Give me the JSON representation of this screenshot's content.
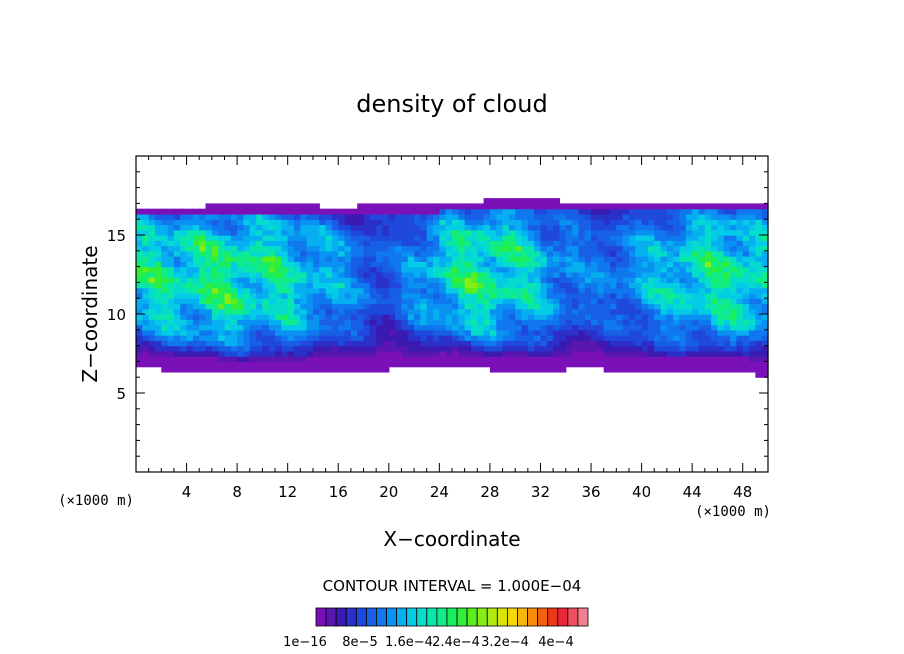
{
  "chart_data": {
    "type": "heatmap",
    "title": "density of cloud",
    "xlabel": "X−coordinate",
    "ylabel": "Z−coordinate",
    "x_unit_label": "(×1000 m)",
    "y_unit_label": "(×1000 m)",
    "xlim": [
      0,
      50
    ],
    "ylim": [
      0,
      20
    ],
    "x_ticks": [
      "4",
      "8",
      "12",
      "16",
      "20",
      "24",
      "28",
      "32",
      "36",
      "40",
      "44",
      "48"
    ],
    "y_ticks": [
      "5",
      "10",
      "15"
    ],
    "x_tick_values": [
      4,
      8,
      12,
      16,
      20,
      24,
      28,
      32,
      36,
      40,
      44,
      48
    ],
    "y_tick_values": [
      5,
      10,
      15
    ],
    "cloud_base_z": 6.6,
    "cloud_top_z": 17.0,
    "contour_interval_label": "CONTOUR INTERVAL = 1.000E−04",
    "colorbar": {
      "labels": [
        "1e−16",
        "8e−5",
        "1.6e−4",
        "2.4e−4",
        "3.2e−4",
        "4e−4"
      ],
      "colors": [
        "#7a10b8",
        "#5a16b0",
        "#3a1ab0",
        "#2a30c8",
        "#1f48dc",
        "#1760e6",
        "#1078ee",
        "#0a92f2",
        "#06b0f0",
        "#04cce6",
        "#06dccc",
        "#08e6a8",
        "#10ec86",
        "#18ee60",
        "#30ee3a",
        "#5aee20",
        "#86ee14",
        "#b0ea10",
        "#d8e40c",
        "#f4d80a",
        "#f6b60a",
        "#f68c0a",
        "#f26010",
        "#ec3818",
        "#e82838",
        "#ee5060",
        "#f28090"
      ]
    },
    "series": [
      {
        "x": [
          0,
          4,
          8,
          12,
          16,
          20,
          24,
          28,
          32,
          36,
          40,
          44,
          48,
          50
        ],
        "top_z": [
          16.8,
          16.8,
          16.9,
          16.9,
          16.8,
          16.9,
          17.0,
          17.2,
          17.2,
          17.1,
          17.0,
          17.0,
          17.0,
          17.0
        ],
        "base_z": [
          6.6,
          6.4,
          6.2,
          6.2,
          6.4,
          6.5,
          6.6,
          6.5,
          6.4,
          6.6,
          6.2,
          6.4,
          6.4,
          6.0
        ],
        "core_density": [
          0.00022,
          0.00024,
          0.00025,
          0.00022,
          0.00016,
          0.0001,
          0.0002,
          0.00026,
          0.00018,
          0.00012,
          0.00016,
          0.00022,
          0.00024,
          0.0002
        ]
      }
    ]
  }
}
